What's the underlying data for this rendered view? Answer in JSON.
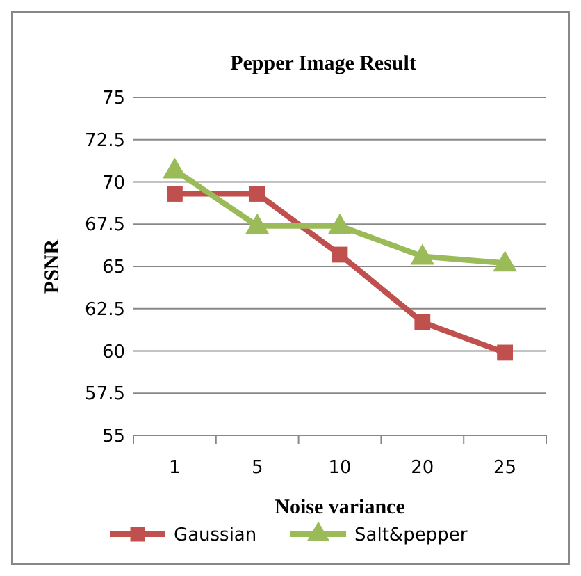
{
  "chart_data": {
    "type": "line",
    "title": "Pepper Image Result",
    "xlabel": "Noise variance",
    "ylabel": "PSNR",
    "categories": [
      "1",
      "5",
      "10",
      "20",
      "25"
    ],
    "series": [
      {
        "name": "Gaussian",
        "color": "#c0504d",
        "marker": "square",
        "values": [
          69.3,
          69.3,
          65.7,
          61.7,
          59.9
        ]
      },
      {
        "name": "Salt&pepper",
        "color": "#9bbb59",
        "marker": "triangle",
        "values": [
          70.7,
          67.4,
          67.4,
          65.6,
          65.2
        ]
      }
    ],
    "ylim": [
      55,
      75
    ],
    "yticks": [
      55,
      57.5,
      60,
      62.5,
      65,
      67.5,
      70,
      72.5,
      75
    ],
    "grid": "y",
    "legend": "bottom"
  }
}
